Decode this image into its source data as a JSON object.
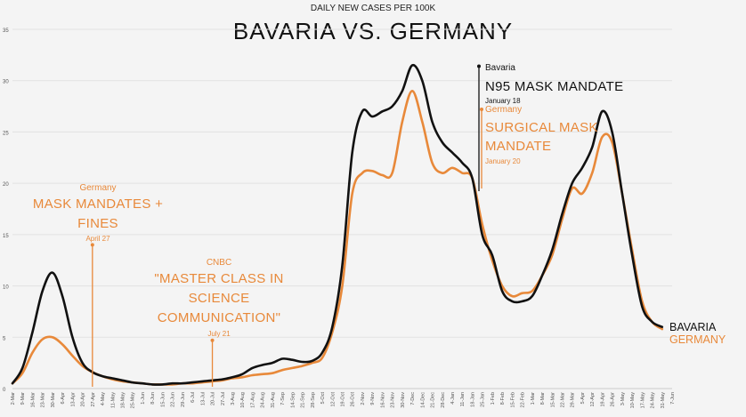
{
  "header": {
    "subtitle": "DAILY NEW CASES PER 100K",
    "title": "BAVARIA VS. GERMANY"
  },
  "colors": {
    "bavaria": "#111111",
    "germany": "#e8893a",
    "background": "#f4f4f4",
    "grid": "#e2e2e2"
  },
  "annotations": [
    {
      "id": "april27",
      "source": "Germany",
      "lines": [
        "MASK MANDATES +",
        "FINES"
      ],
      "date": "April 27",
      "x": "27-Apr",
      "y_top": 14,
      "color": "#e8893a"
    },
    {
      "id": "july21",
      "source": "CNBC",
      "lines": [
        "\"MASTER CLASS IN",
        "SCIENCE",
        "COMMUNICATION\""
      ],
      "date": "July 21",
      "x": "20-Jul",
      "y_top": 4.7,
      "color": "#e8893a"
    },
    {
      "id": "jan18",
      "source": "Bavaria",
      "lines": [
        "N95 MASK MANDATE"
      ],
      "date": "January 18",
      "x": "18-Jan",
      "y_top": 31.4,
      "color": "#111111"
    },
    {
      "id": "jan20",
      "source": "Germany",
      "lines": [
        "SURGICAL MASK",
        "MANDATE"
      ],
      "date": "January 20",
      "x": "20-Jan",
      "y_top": 27.2,
      "color": "#e8893a"
    }
  ],
  "chart_data": {
    "type": "line",
    "title": "BAVARIA VS. GERMANY",
    "subtitle": "DAILY NEW CASES PER 100K",
    "ylim": [
      0,
      35
    ],
    "yticks": [
      0,
      5,
      10,
      15,
      20,
      25,
      30,
      35
    ],
    "grid": true,
    "x_tick_labels": [
      "2-Mar",
      "9-Mar",
      "16-Mar",
      "23-Mar",
      "30-Mar",
      "6-Apr",
      "13-Apr",
      "20-Apr",
      "27-Apr",
      "4-May",
      "11-May",
      "18-May",
      "25-May",
      "1-Jun",
      "8-Jun",
      "15-Jun",
      "22-Jun",
      "29-Jun",
      "6-Jul",
      "13-Jul",
      "20-Jul",
      "27-Jul",
      "3-Aug",
      "10-Aug",
      "17-Aug",
      "24-Aug",
      "31-Aug",
      "7-Sep",
      "14-Sep",
      "21-Sep",
      "28-Sep",
      "5-Oct",
      "12-Oct",
      "19-Oct",
      "26-Oct",
      "2-Nov",
      "9-Nov",
      "16-Nov",
      "23-Nov",
      "30-Nov",
      "7-Dec",
      "14-Dec",
      "21-Dec",
      "28-Dec",
      "4-Jan",
      "11-Jan",
      "18-Jan",
      "25-Jan",
      "1-Feb",
      "8-Feb",
      "15-Feb",
      "22-Feb",
      "1-Mar",
      "8-Mar",
      "15-Mar",
      "22-Mar",
      "29-Mar",
      "5-Apr",
      "12-Apr",
      "19-Apr",
      "26-Apr",
      "3-May",
      "10-May",
      "17-May",
      "24-May",
      "31-May",
      "7-Jun"
    ],
    "series": [
      {
        "name": "BAVARIA",
        "color": "#111111",
        "values": [
          0.5,
          2.0,
          5.5,
          9.5,
          11.3,
          9.0,
          5.0,
          2.5,
          1.6,
          1.2,
          1.0,
          0.8,
          0.6,
          0.5,
          0.4,
          0.4,
          0.5,
          0.5,
          0.6,
          0.7,
          0.8,
          0.9,
          1.1,
          1.4,
          2.0,
          2.3,
          2.5,
          2.9,
          2.8,
          2.6,
          2.7,
          3.5,
          6.0,
          12.0,
          23.0,
          27.0,
          26.5,
          27.0,
          27.5,
          29.0,
          31.5,
          30.0,
          26.0,
          24.0,
          23.0,
          22.0,
          20.5,
          15.0,
          13.0,
          9.5,
          8.5,
          8.5,
          9.0,
          11.0,
          13.5,
          17.0,
          20.0,
          21.5,
          23.5,
          27.0,
          25.0,
          19.0,
          13.0,
          8.0,
          6.5,
          6.0,
          null
        ]
      },
      {
        "name": "GERMANY",
        "color": "#e8893a",
        "values": [
          0.5,
          1.5,
          3.5,
          4.8,
          5.0,
          4.3,
          3.2,
          2.2,
          1.6,
          1.2,
          0.9,
          0.7,
          0.6,
          0.5,
          0.4,
          0.4,
          0.4,
          0.5,
          0.5,
          0.6,
          0.7,
          0.8,
          1.0,
          1.1,
          1.3,
          1.4,
          1.5,
          1.8,
          2.0,
          2.2,
          2.5,
          3.0,
          5.5,
          10.0,
          19.0,
          21.0,
          21.2,
          20.8,
          21.0,
          26.0,
          29.0,
          26.0,
          22.0,
          21.0,
          21.5,
          21.0,
          20.5,
          16.0,
          12.5,
          10.0,
          9.0,
          9.3,
          9.5,
          11.0,
          13.0,
          16.5,
          19.5,
          19.0,
          21.0,
          24.5,
          24.0,
          19.0,
          13.5,
          8.5,
          6.5,
          5.8,
          null
        ]
      }
    ],
    "legend": [
      {
        "name": "BAVARIA",
        "color": "#111111"
      },
      {
        "name": "GERMANY",
        "color": "#e8893a"
      }
    ]
  }
}
